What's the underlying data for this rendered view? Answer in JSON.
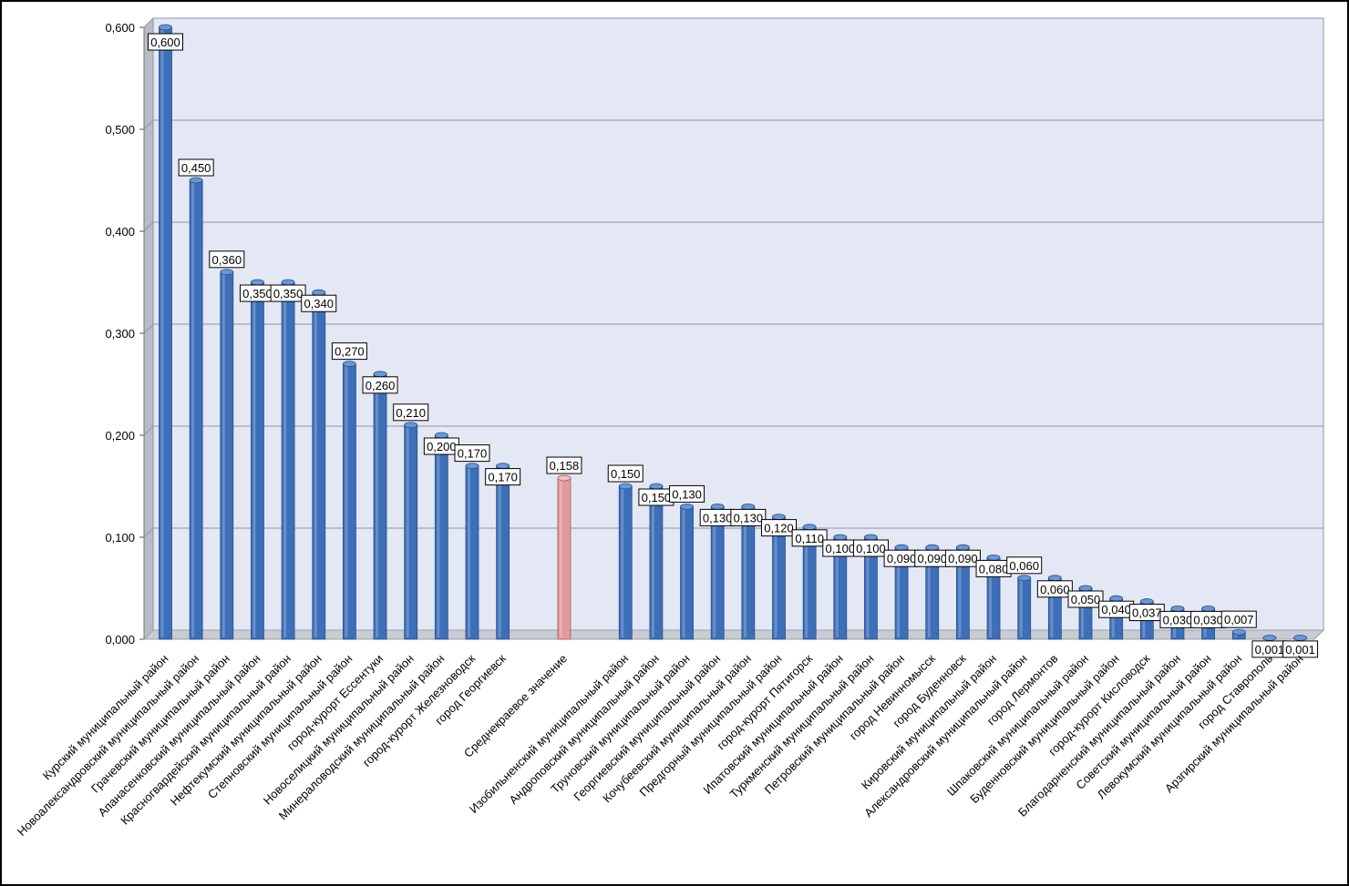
{
  "chart_data": {
    "type": "bar",
    "title": "",
    "xlabel": "",
    "ylabel": "",
    "ylim": [
      0,
      0.6
    ],
    "yticks": [
      "0,000",
      "0,100",
      "0,200",
      "0,300",
      "0,400",
      "0,500",
      "0,600"
    ],
    "grid": true,
    "legend": "none",
    "colors": {
      "bar": "#3d6fb8",
      "highlight": "#e39a9a",
      "plot_bg": "#e4e8f4",
      "grid": "#8c94a6"
    },
    "categories": [
      "Курский муниципальный район",
      "Новоалександровский муниципальный район",
      "Грачевский муниципальный район",
      "Апанасенковский муниципальный район",
      "Красногвардейский муниципальный район",
      "Нефтекумский муниципальный район",
      "Степновский муниципальный район",
      "город-курорт Ессентуки",
      "Новоселицкий муниципальный район",
      "Минераловодский муниципальный район",
      "город-курорт Железноводск",
      "город Георгиевск",
      "",
      "Среднекраевое значение",
      "",
      "Изобильненский муниципальный район",
      "Андроповский муниципальный район",
      "Труновский муниципальный район",
      "Георгиевский муниципальный район",
      "Кочубеевский муниципальный район",
      "Предгорный муниципальный район",
      "город-курорт Пятигорск",
      "Ипатовский муниципальный район",
      "Туркменский муниципальный район",
      "Петровский муниципальный район",
      "город Невинномысск",
      "город Буденновск",
      "Кировский муниципальный район",
      "Александровский муниципальный район",
      "город Лермонтов",
      "Шпаковский муниципальный район",
      "Буденновский муниципальный район",
      "город-курорт Кисловодск",
      "Благодарненский муниципальный район",
      "Советский муниципальный район",
      "Левокумский муниципальный район",
      "город Ставрополь",
      "Арзгирский муниципальный район"
    ],
    "series": [
      {
        "values": [
          0.6,
          0.45,
          0.36,
          0.35,
          0.35,
          0.34,
          0.27,
          0.26,
          0.21,
          0.2,
          0.17,
          0.17,
          null,
          0.158,
          null,
          0.15,
          0.15,
          0.13,
          0.13,
          0.13,
          0.12,
          0.11,
          0.1,
          0.1,
          0.09,
          0.09,
          0.09,
          0.08,
          0.06,
          0.06,
          0.05,
          0.04,
          0.037,
          0.03,
          0.03,
          0.007,
          0.001,
          0.001
        ]
      }
    ],
    "data_labels": [
      "0,600",
      "0,450",
      "0,360",
      "0,350",
      "0,350",
      "0,340",
      "0,270",
      "0,260",
      "0,210",
      "0,200",
      "0,170",
      "0,170",
      "",
      "0,158",
      "",
      "0,150",
      "0,150",
      "0,130",
      "0,130",
      "0,130",
      "0,120",
      "0,110",
      "0,100",
      "0,100",
      "0,090",
      "0,090",
      "0,090",
      "0,080",
      "0,060",
      "0,060",
      "0,050",
      "0,040",
      "0,037",
      "0,030",
      "0,030",
      "0,007",
      "0,001",
      "0,001"
    ],
    "highlight_category": "Среднекраевое значение"
  }
}
